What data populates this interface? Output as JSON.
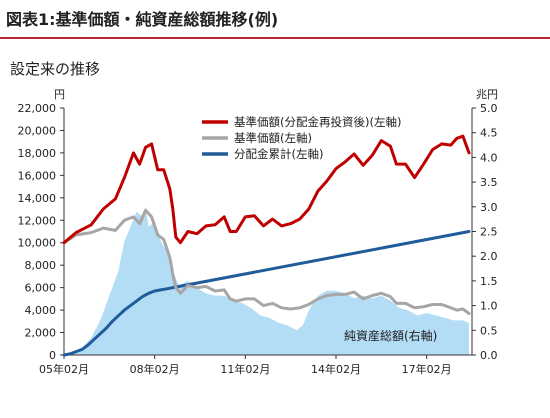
{
  "figure_title": "図表1:基準価額・純資産総額推移(例)",
  "chart_data": {
    "type": "line",
    "title": "設定来の推移",
    "left_axis_unit": "円",
    "right_axis_unit": "兆円",
    "left_ylim": [
      0,
      22000
    ],
    "right_ylim": [
      0,
      5.0
    ],
    "left_ticks": [
      "0",
      "2,000",
      "4,000",
      "6,000",
      "8,000",
      "10,000",
      "12,000",
      "14,000",
      "16,000",
      "18,000",
      "20,000",
      "22,000"
    ],
    "right_ticks": [
      "0.0",
      "0.5",
      "1.0",
      "1.5",
      "2.0",
      "2.5",
      "3.0",
      "3.5",
      "4.0",
      "4.5",
      "5.0"
    ],
    "x_ticks": [
      "05年02月",
      "08年02月",
      "11年02月",
      "14年02月",
      "17年02月"
    ],
    "x_tick_positions": [
      2005.1,
      2008.1,
      2011.1,
      2014.1,
      2017.1
    ],
    "xlim": [
      2005.1,
      2018.6
    ],
    "area_label": "純資産総額(右軸)",
    "legend": [
      {
        "label": "基準価額(分配金再投資後)(左軸)",
        "color": "#c00000"
      },
      {
        "label": "基準価額(左軸)",
        "color": "#a6a6a6"
      },
      {
        "label": "分配金累計(左軸)",
        "color": "#1f5c99"
      }
    ],
    "series": [
      {
        "name": "基準価額(分配金再投資後)(左軸)",
        "axis": "left",
        "color": "#c00000",
        "x": [
          2005.1,
          2005.5,
          2006.0,
          2006.4,
          2006.8,
          2007.1,
          2007.4,
          2007.6,
          2007.8,
          2008.0,
          2008.2,
          2008.4,
          2008.6,
          2008.7,
          2008.8,
          2008.95,
          2009.2,
          2009.5,
          2009.8,
          2010.1,
          2010.4,
          2010.6,
          2010.8,
          2011.1,
          2011.4,
          2011.7,
          2012.0,
          2012.3,
          2012.6,
          2012.9,
          2013.2,
          2013.5,
          2013.8,
          2014.1,
          2014.4,
          2014.7,
          2015.0,
          2015.3,
          2015.6,
          2015.9,
          2016.1,
          2016.4,
          2016.7,
          2017.0,
          2017.3,
          2017.6,
          2017.9,
          2018.1,
          2018.3,
          2018.5
        ],
        "y": [
          10000,
          10900,
          11600,
          13000,
          13900,
          15800,
          18000,
          17000,
          18500,
          18800,
          16500,
          16500,
          14800,
          13000,
          10500,
          10000,
          11000,
          10800,
          11500,
          11600,
          12300,
          11000,
          11000,
          12300,
          12400,
          11500,
          12100,
          11500,
          11700,
          12100,
          13000,
          14600,
          15500,
          16600,
          17200,
          17900,
          16900,
          17800,
          19100,
          18600,
          17000,
          17000,
          15800,
          17000,
          18300,
          18800,
          18700,
          19300,
          19500,
          18000
        ]
      },
      {
        "name": "基準価額(左軸)",
        "axis": "left",
        "color": "#a6a6a6",
        "x": [
          2005.1,
          2005.5,
          2006.0,
          2006.4,
          2006.8,
          2007.1,
          2007.4,
          2007.6,
          2007.8,
          2008.0,
          2008.2,
          2008.4,
          2008.6,
          2008.7,
          2008.8,
          2008.95,
          2009.2,
          2009.5,
          2009.8,
          2010.1,
          2010.4,
          2010.6,
          2010.8,
          2011.1,
          2011.4,
          2011.7,
          2012.0,
          2012.3,
          2012.6,
          2012.9,
          2013.2,
          2013.5,
          2013.8,
          2014.1,
          2014.4,
          2014.7,
          2015.0,
          2015.3,
          2015.6,
          2015.9,
          2016.1,
          2016.4,
          2016.7,
          2017.0,
          2017.3,
          2017.6,
          2017.9,
          2018.1,
          2018.3,
          2018.5
        ],
        "y": [
          10000,
          10700,
          10900,
          11300,
          11100,
          12000,
          12300,
          11700,
          12900,
          12300,
          10700,
          10300,
          8700,
          7200,
          6000,
          5500,
          6200,
          6000,
          6100,
          5700,
          5800,
          5000,
          4800,
          5000,
          5000,
          4400,
          4600,
          4200,
          4100,
          4200,
          4500,
          5000,
          5300,
          5400,
          5400,
          5600,
          5000,
          5300,
          5500,
          5200,
          4600,
          4600,
          4200,
          4300,
          4500,
          4500,
          4200,
          4000,
          4100,
          3700
        ]
      },
      {
        "name": "分配金累計(左軸)",
        "axis": "left",
        "color": "#1f5c99",
        "x": [
          2005.1,
          2005.3,
          2005.5,
          2005.7,
          2005.9,
          2006.1,
          2006.3,
          2006.5,
          2006.7,
          2006.9,
          2007.1,
          2007.3,
          2007.5,
          2007.7,
          2007.9,
          2008.1,
          2008.3,
          2008.5,
          2008.7,
          2008.9,
          2018.5
        ],
        "y": [
          0,
          100,
          300,
          500,
          900,
          1400,
          1900,
          2400,
          3000,
          3500,
          4000,
          4400,
          4800,
          5200,
          5500,
          5700,
          5800,
          5900,
          6000,
          6100,
          11000
        ]
      },
      {
        "name": "純資産総額(右軸)",
        "axis": "right",
        "color": "#b3dcf5",
        "x": [
          2005.1,
          2005.4,
          2005.7,
          2006.0,
          2006.3,
          2006.6,
          2006.9,
          2007.1,
          2007.3,
          2007.5,
          2007.7,
          2007.8,
          2007.9,
          2008.1,
          2008.3,
          2008.5,
          2008.7,
          2008.9,
          2009.2,
          2009.5,
          2009.8,
          2010.1,
          2010.4,
          2010.7,
          2011.0,
          2011.3,
          2011.6,
          2011.9,
          2012.2,
          2012.5,
          2012.8,
          2013.0,
          2013.2,
          2013.5,
          2013.8,
          2014.1,
          2014.4,
          2014.7,
          2015.0,
          2015.3,
          2015.6,
          2015.9,
          2016.2,
          2016.5,
          2016.8,
          2017.1,
          2017.4,
          2017.7,
          2018.0,
          2018.3,
          2018.5
        ],
        "y": [
          0.0,
          0.05,
          0.15,
          0.35,
          0.7,
          1.2,
          1.7,
          2.3,
          2.6,
          2.9,
          2.8,
          3.0,
          2.6,
          2.7,
          2.3,
          2.1,
          1.7,
          1.4,
          1.5,
          1.35,
          1.25,
          1.2,
          1.2,
          1.1,
          1.05,
          0.95,
          0.8,
          0.75,
          0.65,
          0.6,
          0.5,
          0.6,
          0.9,
          1.2,
          1.3,
          1.3,
          1.25,
          1.15,
          1.2,
          1.15,
          1.2,
          1.1,
          0.95,
          0.9,
          0.8,
          0.85,
          0.8,
          0.75,
          0.7,
          0.7,
          0.65
        ]
      }
    ]
  }
}
